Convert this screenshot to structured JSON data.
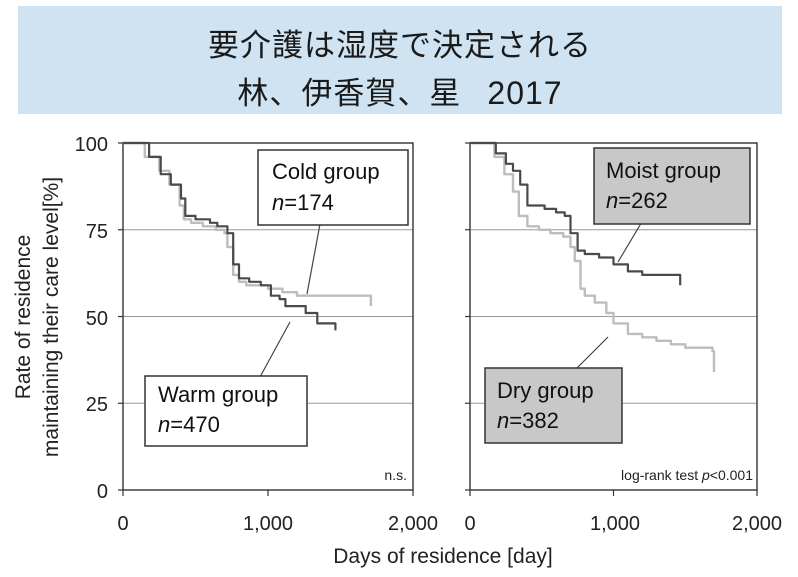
{
  "title": {
    "line1": "要介護は湿度で決定される",
    "line2_authors": "林、伊香賀、星",
    "line2_year": "2017"
  },
  "axes": {
    "ylabel_line1": "Rate of residence",
    "ylabel_line2": "maintaining their care level[%]",
    "xlabel": "Days of residence [day]",
    "y_ticks": [
      "100",
      "75",
      "50",
      "25",
      "0"
    ],
    "x_ticks": [
      "0",
      "1,000",
      "2,000"
    ]
  },
  "colors": {
    "dark_series": "#4a4a4a",
    "light_series": "#bdbdbd",
    "gridline": "#9a9a9a",
    "title_band": "#cfe3f2",
    "box_gray_fill": "#c8c8c8"
  },
  "chart_data": [
    {
      "type": "line",
      "xlim": [
        0,
        2000
      ],
      "ylim": [
        0,
        100
      ],
      "grid": "horizontal",
      "annotation": "n.s.",
      "series": [
        {
          "name": "Cold group",
          "n_text": "n=174",
          "color": "light",
          "x": [
            0,
            80,
            150,
            250,
            320,
            390,
            420,
            470,
            550,
            640,
            700,
            720,
            760,
            800,
            850,
            900,
            1000,
            1100,
            1200,
            1300,
            1350,
            1700,
            1710
          ],
          "y": [
            100,
            100,
            96,
            92,
            88,
            82,
            78,
            77,
            76,
            75,
            74,
            70,
            62,
            60,
            59,
            59,
            58,
            57,
            56,
            56,
            56,
            56,
            53
          ]
        },
        {
          "name": "Warm group",
          "n_text": "n=470",
          "color": "dark",
          "x": [
            0,
            100,
            180,
            260,
            330,
            400,
            430,
            500,
            600,
            650,
            720,
            760,
            800,
            870,
            950,
            1020,
            1080,
            1120,
            1230,
            1260,
            1340,
            1460,
            1465
          ],
          "y": [
            100,
            100,
            96,
            91,
            88,
            84,
            79,
            78,
            77,
            76,
            74,
            65,
            61,
            60,
            59,
            56,
            55,
            53,
            53,
            51,
            48,
            48,
            46
          ]
        }
      ]
    },
    {
      "type": "line",
      "xlim": [
        0,
        2000
      ],
      "ylim": [
        0,
        100
      ],
      "grid": "horizontal",
      "annotation": "log-rank test p<0.001",
      "series": [
        {
          "name": "Moist group",
          "n_text": "n=262",
          "color": "dark",
          "x": [
            0,
            120,
            180,
            250,
            300,
            350,
            400,
            520,
            600,
            660,
            700,
            750,
            800,
            900,
            1000,
            1100,
            1200,
            1300,
            1400,
            1460,
            1465
          ],
          "y": [
            100,
            100,
            97,
            94,
            92,
            88,
            82,
            81,
            80,
            79,
            74,
            69,
            68,
            67,
            65,
            63,
            62,
            62,
            62,
            62,
            59
          ]
        },
        {
          "name": "Dry group",
          "n_text": "n=382",
          "color": "light",
          "x": [
            0,
            100,
            170,
            240,
            300,
            340,
            400,
            480,
            560,
            650,
            700,
            730,
            770,
            800,
            870,
            950,
            1000,
            1100,
            1200,
            1300,
            1400,
            1500,
            1690,
            1700
          ],
          "y": [
            100,
            100,
            96,
            91,
            86,
            79,
            76,
            75,
            74,
            73,
            70,
            66,
            58,
            56,
            54,
            51,
            48,
            45,
            44,
            43,
            42,
            41,
            40,
            34
          ]
        }
      ]
    }
  ]
}
